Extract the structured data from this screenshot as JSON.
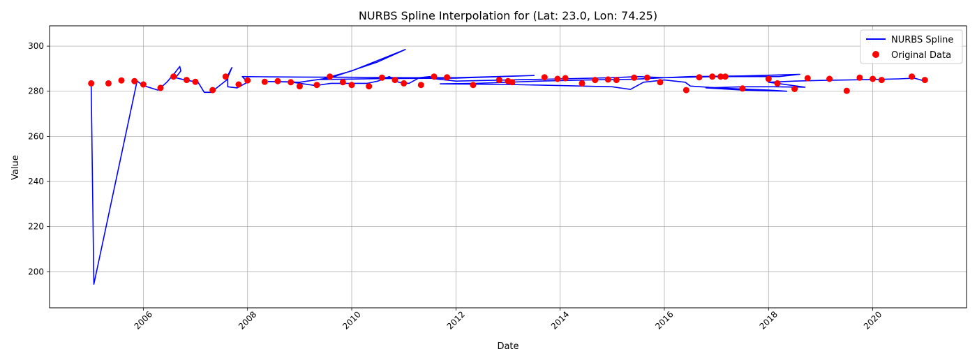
{
  "chart_data": {
    "type": "line",
    "title": "NURBS Spline Interpolation for (Lat: 23.0, Lon: 74.25)",
    "xlabel": "Date",
    "ylabel": "Value",
    "xlim": [
      2004.2,
      2021.8
    ],
    "ylim": [
      184,
      309
    ],
    "x_ticks": [
      2006,
      2008,
      2010,
      2012,
      2014,
      2016,
      2018,
      2020
    ],
    "x_tick_labels": [
      "2006",
      "2008",
      "2010",
      "2012",
      "2014",
      "2016",
      "2018",
      "2020"
    ],
    "y_ticks": [
      200,
      220,
      240,
      260,
      280,
      300
    ],
    "y_tick_labels": [
      "200",
      "220",
      "240",
      "260",
      "280",
      "300"
    ],
    "grid": true,
    "legend_position": "top-right",
    "series": [
      {
        "name": "NURBS Spline",
        "type": "line",
        "color": "#0000ff",
        "points": [
          [
            2005.0,
            283.5
          ],
          [
            2005.0,
            282.0
          ],
          [
            2005.05,
            194.5
          ],
          [
            2005.88,
            284.5
          ],
          [
            2006.0,
            282.5
          ],
          [
            2006.28,
            280.5
          ],
          [
            2006.45,
            284.0
          ],
          [
            2006.6,
            288.0
          ],
          [
            2006.7,
            291.0
          ],
          [
            2006.72,
            289.0
          ],
          [
            2006.62,
            286.0
          ],
          [
            2006.8,
            285.0
          ],
          [
            2007.05,
            284.0
          ],
          [
            2007.17,
            279.5
          ],
          [
            2007.3,
            279.5
          ],
          [
            2007.6,
            285.0
          ],
          [
            2007.7,
            290.5
          ],
          [
            2007.62,
            287.0
          ],
          [
            2007.62,
            282.0
          ],
          [
            2007.8,
            281.5
          ],
          [
            2008.0,
            284.0
          ],
          [
            2007.9,
            286.5
          ],
          [
            2008.3,
            286.4
          ],
          [
            2009.0,
            286.3
          ],
          [
            2010.0,
            286.2
          ],
          [
            2011.0,
            286.0
          ],
          [
            2011.4,
            286.0
          ],
          [
            2012.0,
            286.0
          ],
          [
            2012.8,
            286.5
          ],
          [
            2013.5,
            287.0
          ],
          [
            2012.0,
            285.8
          ],
          [
            2010.6,
            285.6
          ],
          [
            2009.4,
            285.2
          ],
          [
            2010.0,
            289.0
          ],
          [
            2011.03,
            298.5
          ],
          [
            2010.5,
            293.0
          ],
          [
            2009.6,
            286.0
          ],
          [
            2009.0,
            284.0
          ],
          [
            2008.4,
            284.3
          ],
          [
            2008.8,
            284.2
          ],
          [
            2009.3,
            282.5
          ],
          [
            2009.6,
            283.5
          ],
          [
            2010.3,
            283.5
          ],
          [
            2010.5,
            284.5
          ],
          [
            2010.72,
            286.5
          ],
          [
            2010.9,
            284.0
          ],
          [
            2011.1,
            283.5
          ],
          [
            2011.3,
            286.0
          ],
          [
            2011.5,
            286.5
          ],
          [
            2011.6,
            285.5
          ],
          [
            2012.0,
            284.5
          ],
          [
            2013.0,
            285.0
          ],
          [
            2014.0,
            285.5
          ],
          [
            2015.0,
            286.0
          ],
          [
            2015.5,
            286.5
          ],
          [
            2016.0,
            286.0
          ],
          [
            2017.0,
            286.5
          ],
          [
            2017.8,
            286.5
          ],
          [
            2018.2,
            286.5
          ],
          [
            2018.6,
            287.5
          ],
          [
            2017.5,
            286.8
          ],
          [
            2016.5,
            286.5
          ],
          [
            2016.0,
            286.0
          ],
          [
            2015.4,
            285.3
          ],
          [
            2014.5,
            285.0
          ],
          [
            2013.6,
            284.5
          ],
          [
            2013.0,
            284.0
          ],
          [
            2012.4,
            283.5
          ],
          [
            2011.7,
            283.3
          ],
          [
            2013.0,
            283.0
          ],
          [
            2014.0,
            282.5
          ],
          [
            2015.0,
            282.0
          ],
          [
            2015.35,
            280.8
          ],
          [
            2015.6,
            284.0
          ],
          [
            2016.0,
            285.0
          ],
          [
            2016.4,
            284.0
          ],
          [
            2016.5,
            282.3
          ],
          [
            2017.0,
            281.5
          ],
          [
            2017.5,
            281.0
          ],
          [
            2018.0,
            280.5
          ],
          [
            2018.35,
            280.0
          ],
          [
            2017.5,
            280.5
          ],
          [
            2016.8,
            281.5
          ],
          [
            2017.5,
            282.0
          ],
          [
            2018.1,
            282.0
          ],
          [
            2018.7,
            281.8
          ],
          [
            2018.0,
            284.0
          ],
          [
            2018.5,
            284.5
          ],
          [
            2019.0,
            284.8
          ],
          [
            2019.5,
            285.0
          ],
          [
            2020.0,
            285.2
          ],
          [
            2020.5,
            285.5
          ],
          [
            2020.8,
            285.8
          ],
          [
            2021.0,
            284.5
          ]
        ]
      },
      {
        "name": "Original Data",
        "type": "scatter",
        "color": "#ff0000",
        "points": [
          [
            2005.0,
            283.5
          ],
          [
            2005.33,
            283.5
          ],
          [
            2005.58,
            284.8
          ],
          [
            2005.83,
            284.5
          ],
          [
            2006.0,
            283.0
          ],
          [
            2006.33,
            281.5
          ],
          [
            2006.58,
            286.5
          ],
          [
            2006.83,
            285.0
          ],
          [
            2007.0,
            284.2
          ],
          [
            2007.33,
            280.5
          ],
          [
            2007.58,
            286.5
          ],
          [
            2007.83,
            283.0
          ],
          [
            2008.0,
            284.8
          ],
          [
            2008.33,
            284.2
          ],
          [
            2008.58,
            284.5
          ],
          [
            2008.83,
            284.0
          ],
          [
            2009.0,
            282.2
          ],
          [
            2009.33,
            282.8
          ],
          [
            2009.58,
            286.5
          ],
          [
            2009.83,
            284.0
          ],
          [
            2010.0,
            282.8
          ],
          [
            2010.33,
            282.2
          ],
          [
            2010.58,
            286.0
          ],
          [
            2010.83,
            285.0
          ],
          [
            2011.0,
            283.5
          ],
          [
            2011.33,
            282.8
          ],
          [
            2011.58,
            286.5
          ],
          [
            2011.83,
            286.2
          ],
          [
            2012.33,
            282.8
          ],
          [
            2012.83,
            285.0
          ],
          [
            2013.0,
            284.5
          ],
          [
            2013.08,
            284.0
          ],
          [
            2013.7,
            286.2
          ],
          [
            2013.95,
            285.5
          ],
          [
            2014.1,
            285.8
          ],
          [
            2014.42,
            283.5
          ],
          [
            2014.67,
            285.0
          ],
          [
            2014.92,
            285.2
          ],
          [
            2015.08,
            285.0
          ],
          [
            2015.42,
            286.0
          ],
          [
            2015.67,
            286.0
          ],
          [
            2015.92,
            284.0
          ],
          [
            2016.42,
            280.5
          ],
          [
            2016.67,
            286.2
          ],
          [
            2016.92,
            286.5
          ],
          [
            2017.08,
            286.5
          ],
          [
            2017.17,
            286.5
          ],
          [
            2017.5,
            281.2
          ],
          [
            2018.0,
            285.5
          ],
          [
            2018.17,
            283.5
          ],
          [
            2018.5,
            281.0
          ],
          [
            2018.75,
            285.8
          ],
          [
            2019.17,
            285.5
          ],
          [
            2019.5,
            280.2
          ],
          [
            2019.75,
            286.0
          ],
          [
            2020.0,
            285.5
          ],
          [
            2020.17,
            285.0
          ],
          [
            2020.75,
            286.5
          ],
          [
            2021.0,
            285.0
          ]
        ]
      }
    ]
  }
}
